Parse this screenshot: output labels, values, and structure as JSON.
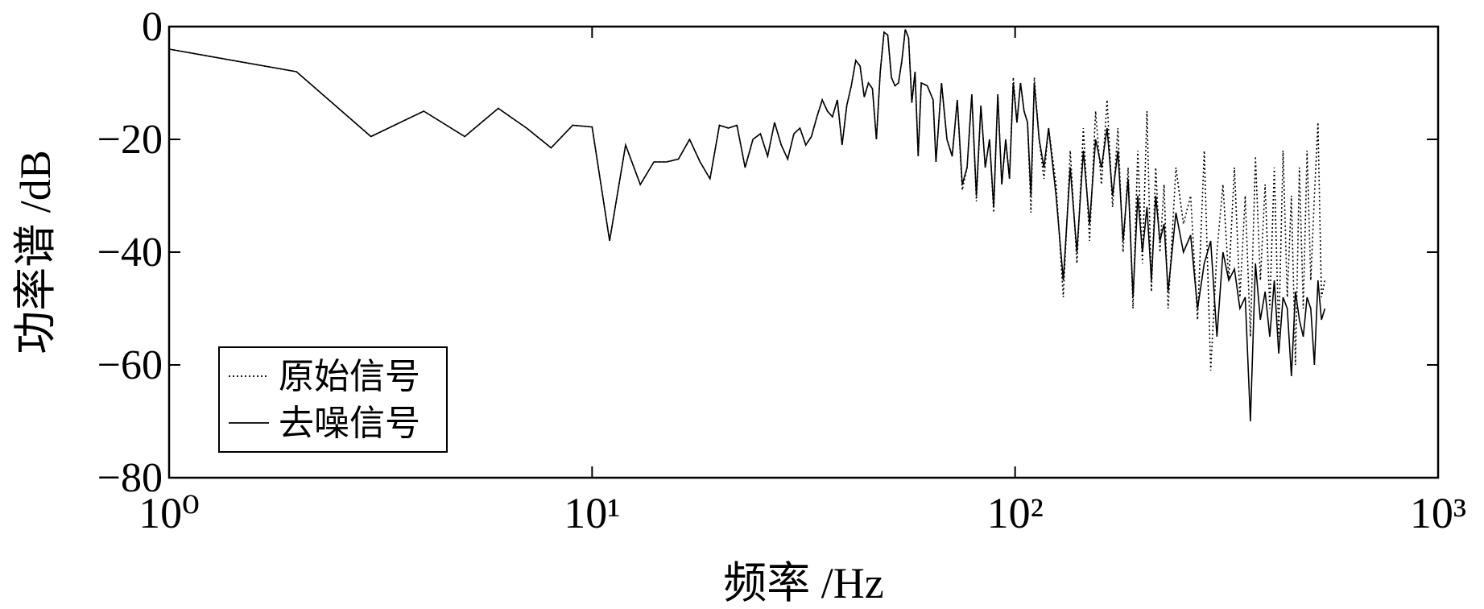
{
  "chart_data": {
    "type": "line",
    "xlabel": "频率 /Hz",
    "ylabel": "功率谱 /dB",
    "xscale": "log",
    "xlim": [
      1,
      1000
    ],
    "xticks": [
      {
        "value": 1,
        "label": "10⁰"
      },
      {
        "value": 10,
        "label": "10¹"
      },
      {
        "value": 100,
        "label": "10²"
      },
      {
        "value": 1000,
        "label": "10³"
      }
    ],
    "ylim": [
      -80,
      0
    ],
    "yticks": [
      {
        "value": 0,
        "label": "0"
      },
      {
        "value": -20,
        "label": "−20"
      },
      {
        "value": -40,
        "label": "−40"
      },
      {
        "value": -60,
        "label": "−60"
      },
      {
        "value": -80,
        "label": "−80"
      }
    ],
    "grid": false,
    "legend": "lower left",
    "x": [
      1,
      2,
      3,
      4,
      5,
      6,
      7,
      8,
      9,
      10,
      11,
      12,
      13,
      14,
      15,
      16,
      17,
      18,
      19,
      20,
      21,
      22,
      23,
      24,
      25,
      26,
      27,
      28,
      29,
      30,
      31,
      32,
      33,
      34,
      35,
      36,
      37,
      38,
      39,
      40,
      41,
      42,
      43,
      44,
      45,
      46,
      47,
      48,
      49,
      50,
      51,
      52,
      53,
      54,
      55,
      56,
      57,
      58,
      59,
      60,
      62,
      64,
      65,
      67,
      69,
      71,
      73,
      75,
      77,
      79,
      81,
      83,
      85,
      87,
      89,
      91,
      93,
      95,
      97,
      99,
      101,
      103,
      105,
      107,
      109,
      111,
      114,
      117,
      120,
      125,
      130,
      135,
      140,
      145,
      150,
      155,
      160,
      165,
      170,
      175,
      180,
      185,
      190,
      195,
      200,
      205,
      210,
      215,
      220,
      225,
      230,
      240,
      250,
      260,
      270,
      280,
      290,
      300,
      310,
      320,
      330,
      340,
      350,
      360,
      370,
      380,
      390,
      400,
      410,
      420,
      430,
      440,
      450,
      460,
      470,
      480,
      490,
      500,
      510,
      520,
      530,
      540
    ],
    "series": [
      {
        "name": "原始信号",
        "color": "#000000",
        "linestyle": "dotted",
        "values": [
          -4,
          -8,
          -19.5,
          -15,
          -19.5,
          -14.5,
          -18,
          -21.5,
          -17.5,
          -17.8,
          -38,
          -21,
          -28,
          -24,
          -24,
          -23.5,
          -20,
          -24,
          -27,
          -17.5,
          -18,
          -17.5,
          -25,
          -20,
          -19,
          -23,
          -17,
          -21,
          -23.5,
          -19,
          -18,
          -21,
          -19.5,
          -16,
          -13,
          -15,
          -16,
          -13,
          -21,
          -14,
          -10.5,
          -6,
          -7,
          -12.5,
          -10,
          -11,
          -20,
          -8,
          -1,
          -1.5,
          -9,
          -10.5,
          -10,
          -6,
          -0.5,
          -2,
          -13.5,
          -8,
          -23,
          -10,
          -10.5,
          -13,
          -24,
          -10,
          -20,
          -23,
          -13,
          -29,
          -25,
          -12,
          -31,
          -14,
          -25,
          -20,
          -33,
          -12,
          -28,
          -20,
          -27,
          -9,
          -17,
          -10,
          -15,
          -17,
          -33,
          -9,
          -20,
          -27,
          -18,
          -28,
          -48,
          -22,
          -42,
          -18,
          -38,
          -15,
          -28,
          -13,
          -32,
          -18,
          -40,
          -25,
          -50,
          -22,
          -42,
          -15,
          -47,
          -25,
          -40,
          -28,
          -50,
          -25,
          -35,
          -30,
          -52,
          -22,
          -61,
          -40,
          -28,
          -45,
          -25,
          -48,
          -30,
          -55,
          -23,
          -45,
          -28,
          -50,
          -25,
          -55,
          -22,
          -48,
          -30,
          -60,
          -25,
          -50,
          -22,
          -45,
          -30,
          -17,
          -48,
          -45
        ]
      },
      {
        "name": "去噪信号",
        "color": "#000000",
        "linestyle": "solid",
        "values": [
          -4,
          -8,
          -19.5,
          -15,
          -19.5,
          -14.5,
          -18,
          -21.5,
          -17.5,
          -17.8,
          -38,
          -21,
          -28,
          -24,
          -24,
          -23.5,
          -20,
          -24,
          -27,
          -17.5,
          -18,
          -17.5,
          -25,
          -20,
          -19,
          -23,
          -17,
          -21,
          -23.5,
          -19,
          -18,
          -21,
          -19.5,
          -16,
          -13,
          -15,
          -16,
          -13,
          -21,
          -14,
          -10.5,
          -6,
          -7,
          -12.5,
          -10,
          -11,
          -20,
          -8,
          -1,
          -1.5,
          -9,
          -10.5,
          -10,
          -6,
          -0.5,
          -2,
          -13.5,
          -8,
          -23,
          -10,
          -10.5,
          -13,
          -24,
          -10,
          -20,
          -23,
          -13,
          -28,
          -25,
          -12,
          -30,
          -14,
          -25,
          -20,
          -32,
          -12,
          -28,
          -20,
          -27,
          -10,
          -17,
          -10,
          -15,
          -17,
          -30,
          -10,
          -20,
          -25,
          -18,
          -30,
          -45,
          -25,
          -40,
          -22,
          -35,
          -20,
          -25,
          -18,
          -30,
          -22,
          -38,
          -27,
          -48,
          -30,
          -40,
          -32,
          -45,
          -30,
          -38,
          -35,
          -47,
          -33,
          -40,
          -37,
          -50,
          -42,
          -38,
          -55,
          -40,
          -45,
          -43,
          -50,
          -48,
          -70,
          -42,
          -52,
          -47,
          -55,
          -45,
          -58,
          -48,
          -50,
          -62,
          -47,
          -52,
          -55,
          -48,
          -50,
          -60,
          -45,
          -52,
          -50
        ]
      }
    ]
  }
}
